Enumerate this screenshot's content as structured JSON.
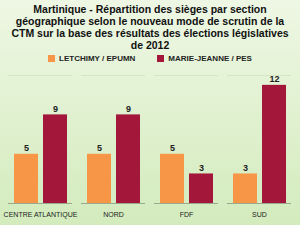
{
  "chart_data": {
    "type": "bar",
    "title": "Martinique - Répartition des sièges par section géographique selon le nouveau mode de scrutin de la CTM sur la base des résultats des élections législatives de 2012",
    "categories": [
      "CENTRE ATLANTIQUE",
      "NORD",
      "FDF",
      "SUD"
    ],
    "series": [
      {
        "name": "LETCHIMY / EPUMN",
        "color": "#f79646",
        "values": [
          5,
          5,
          5,
          3
        ]
      },
      {
        "name": "MARIE-JEANNE / PES",
        "color": "#a3173a",
        "values": [
          9,
          9,
          3,
          12
        ]
      }
    ],
    "ylim": [
      0,
      13
    ],
    "data_labels": true,
    "tick_labels": "x",
    "legend": "top"
  }
}
